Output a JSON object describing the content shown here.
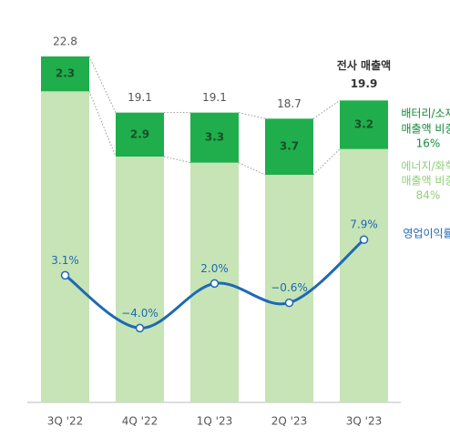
{
  "chart_data": {
    "type": "bar",
    "categories": [
      "3Q '22",
      "4Q '22",
      "1Q '23",
      "2Q '23",
      "3Q '23"
    ],
    "stacked": true,
    "ylim": [
      0,
      24
    ],
    "y2lim": [
      -14,
      35
    ],
    "totals": [
      22.8,
      19.1,
      19.1,
      18.7,
      19.9
    ],
    "annotation": "전사 매출액",
    "series": [
      {
        "legend": [
          "에너지/화학",
          "매출액 비중",
          "84%"
        ],
        "color": "#c6e4b5",
        "text_color": "#8fcf78",
        "values": [
          20.5,
          16.2,
          15.8,
          15.0,
          16.7
        ]
      },
      {
        "legend": [
          "배터리/소재",
          "매출액 비중",
          "16%"
        ],
        "color": "#1fae4b",
        "text_color": "#148a3a",
        "values": [
          2.3,
          2.9,
          3.3,
          3.7,
          3.2
        ]
      },
      {
        "type": "line",
        "axis": "y2",
        "legend": [
          "영업이익률"
        ],
        "color": "#1f69b3",
        "values": [
          3.1,
          -4.0,
          2.0,
          -0.6,
          7.9
        ],
        "value_labels": [
          "3.1%",
          "−4.0%",
          "2.0%",
          "−0.6%",
          "7.9%"
        ]
      }
    ]
  }
}
